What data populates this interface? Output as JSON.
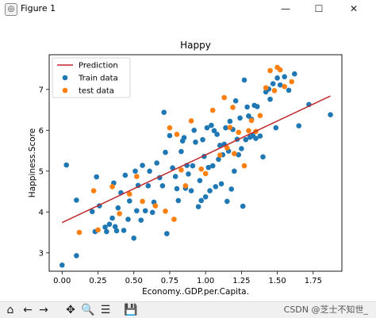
{
  "window": {
    "title": "Figure 1",
    "app_icon": "python-matplotlib-icon",
    "minimize_glyph": "—",
    "maximize_glyph": "☐",
    "close_glyph": "✕"
  },
  "toolbar": {
    "items": [
      {
        "name": "home-icon",
        "glyph": "⌂"
      },
      {
        "name": "back-arrow-icon",
        "glyph": "←"
      },
      {
        "name": "forward-arrow-icon",
        "glyph": "→"
      },
      {
        "name": "pan-icon",
        "glyph": "✥"
      },
      {
        "name": "zoom-icon",
        "glyph": "🔍"
      },
      {
        "name": "configure-subplots-icon",
        "glyph": "☰"
      },
      {
        "name": "save-icon",
        "glyph": "💾"
      }
    ],
    "watermark": "CSDN @芝士不知世_"
  },
  "colors": {
    "train": "#1f77b4",
    "test": "#ff7f0e",
    "prediction": "#c0282c",
    "axes": "#000000"
  },
  "chart_data": {
    "type": "scatter",
    "title": "Happy",
    "xlabel": "Economy..GDP.per.Capita.",
    "ylabel": "Happiness.Score",
    "xlim": [
      -0.09,
      1.95
    ],
    "ylim": [
      2.55,
      7.85
    ],
    "xticks": [
      0.0,
      0.25,
      0.5,
      0.75,
      1.0,
      1.25,
      1.5,
      1.75
    ],
    "xtick_labels": [
      "0.00",
      "0.25",
      "0.50",
      "0.75",
      "1.00",
      "1.25",
      "1.50",
      "1.75"
    ],
    "yticks": [
      3,
      4,
      5,
      6,
      7
    ],
    "ytick_labels": [
      "3",
      "4",
      "5",
      "6",
      "7"
    ],
    "grid": false,
    "legend_position": "upper-left",
    "series": [
      {
        "name": "Prediction",
        "kind": "line",
        "x": [
          0.0,
          1.87
        ],
        "y": [
          3.74,
          6.84
        ]
      },
      {
        "name": "Train data",
        "kind": "scatter",
        "x": [
          0.0,
          0.03,
          0.1,
          0.1,
          0.21,
          0.23,
          0.24,
          0.26,
          0.3,
          0.31,
          0.33,
          0.35,
          0.36,
          0.37,
          0.38,
          0.39,
          0.41,
          0.43,
          0.44,
          0.46,
          0.47,
          0.5,
          0.51,
          0.52,
          0.53,
          0.55,
          0.56,
          0.58,
          0.6,
          0.61,
          0.63,
          0.64,
          0.66,
          0.68,
          0.7,
          0.71,
          0.72,
          0.73,
          0.75,
          0.77,
          0.79,
          0.8,
          0.81,
          0.83,
          0.84,
          0.85,
          0.86,
          0.87,
          0.88,
          0.9,
          0.91,
          0.92,
          0.93,
          0.95,
          0.96,
          0.97,
          0.98,
          0.99,
          1.0,
          1.01,
          1.02,
          1.03,
          1.04,
          1.05,
          1.06,
          1.07,
          1.08,
          1.09,
          1.1,
          1.11,
          1.12,
          1.13,
          1.14,
          1.15,
          1.16,
          1.17,
          1.18,
          1.19,
          1.2,
          1.21,
          1.22,
          1.23,
          1.24,
          1.25,
          1.26,
          1.27,
          1.28,
          1.29,
          1.3,
          1.31,
          1.32,
          1.33,
          1.34,
          1.35,
          1.36,
          1.38,
          1.4,
          1.42,
          1.44,
          1.45,
          1.47,
          1.49,
          1.5,
          1.52,
          1.55,
          1.58,
          1.62,
          1.65,
          1.72,
          1.87
        ],
        "y": [
          2.7,
          5.15,
          2.93,
          4.29,
          4.01,
          3.52,
          4.86,
          4.15,
          3.63,
          3.52,
          3.7,
          3.85,
          4.71,
          3.64,
          3.54,
          4.1,
          4.47,
          3.55,
          4.9,
          3.82,
          4.27,
          3.36,
          5.0,
          4.03,
          4.65,
          3.8,
          5.14,
          4.03,
          4.64,
          5.0,
          3.99,
          4.24,
          5.2,
          4.84,
          4.64,
          6.44,
          5.46,
          3.47,
          5.87,
          5.08,
          4.87,
          4.57,
          4.28,
          5.48,
          5.74,
          5.82,
          4.58,
          5.14,
          4.93,
          4.52,
          5.13,
          6.0,
          5.71,
          4.13,
          4.77,
          4.28,
          5.77,
          5.36,
          4.37,
          6.06,
          5.09,
          4.52,
          6.12,
          5.13,
          5.99,
          4.62,
          5.9,
          5.29,
          5.63,
          4.69,
          5.4,
          5.66,
          6.06,
          4.26,
          5.49,
          6.22,
          4.56,
          6.02,
          5.0,
          6.72,
          5.78,
          5.4,
          6.3,
          5.55,
          4.14,
          7.23,
          5.77,
          6.57,
          6.35,
          5.83,
          6.27,
          5.87,
          6.61,
          5.8,
          6.58,
          5.86,
          5.35,
          6.94,
          7.01,
          6.76,
          7.14,
          6.06,
          7.28,
          7.11,
          7.31,
          6.98,
          7.38,
          6.11,
          6.63,
          6.38
        ]
      },
      {
        "name": "test data",
        "kind": "scatter",
        "x": [
          0.12,
          0.22,
          0.25,
          0.35,
          0.4,
          0.47,
          0.52,
          0.56,
          0.65,
          0.72,
          0.75,
          0.78,
          0.8,
          0.83,
          0.86,
          0.9,
          0.97,
          1.0,
          1.05,
          1.1,
          1.13,
          1.15,
          1.17,
          1.19,
          1.2,
          1.23,
          1.27,
          1.3,
          1.32,
          1.35,
          1.38,
          1.42,
          1.45,
          1.48,
          1.5,
          1.52,
          1.55,
          1.6
        ],
        "y": [
          3.5,
          4.52,
          3.56,
          4.62,
          3.96,
          4.44,
          4.87,
          4.26,
          4.15,
          4.02,
          6.06,
          3.82,
          5.9,
          5.03,
          4.64,
          6.23,
          5.05,
          4.94,
          6.49,
          5.39,
          6.8,
          5.57,
          6.07,
          6.56,
          5.43,
          5.95,
          5.13,
          5.99,
          6.24,
          5.97,
          6.36,
          7.04,
          7.46,
          6.97,
          7.54,
          7.48,
          7.07,
          7.19
        ]
      }
    ]
  }
}
